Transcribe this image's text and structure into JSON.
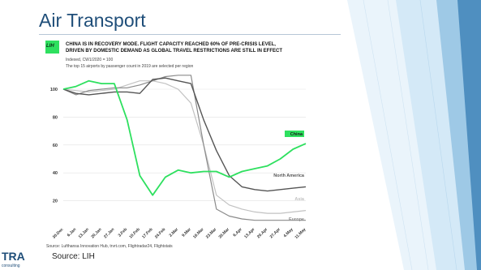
{
  "slide": {
    "title": "Air Transport",
    "source": "Source: LIH",
    "logo_text": "TRA",
    "logo_subtext": "consulting"
  },
  "chart_header": {
    "badge_text": "LIH",
    "headline_line1": "CHINA IS IN RECOVERY MODE. FLIGHT CAPACITY REACHED 60% OF PRE-CRISIS LEVEL,",
    "headline_line2": "DRIVEN BY DOMESTIC DEMAND AS GLOBAL TRAVEL RESTRICTIONS ARE STILL IN EFFECT",
    "note1": "Indexed, CW1/2020 = 100",
    "note2": "The top 15 airports by passenger count in 2019 are selected per region",
    "source": "Source: Lufthansa Innovation Hub, trvrt.com, Flightradar24, Flightstats"
  },
  "colors": {
    "title": "#1f4e79",
    "china": "#2ee05f",
    "north_america": "#555555",
    "asia": "#c2c2c2",
    "europe": "#8a8a8a",
    "grid": "#e2e2e2"
  },
  "chart_data": {
    "type": "line",
    "categories": [
      "30.Dec",
      "6.Jan",
      "13.Jan",
      "20.Jan",
      "27.Jan",
      "3.Feb",
      "10.Feb",
      "17.Feb",
      "24.Feb",
      "2.Mar",
      "9.Mar",
      "16.Mar",
      "23.Mar",
      "30.Mar",
      "6.Apr",
      "13.Apr",
      "20.Apr",
      "27.Apr",
      "4.May",
      "11.May"
    ],
    "yticks": [
      20,
      40,
      60,
      80,
      100
    ],
    "ylim": [
      0,
      120
    ],
    "grid": true,
    "legend": "inline labels at line ends",
    "series": [
      {
        "name": "China",
        "key": "china",
        "values": [
          100,
          102,
          106,
          104,
          104,
          78,
          38,
          24,
          37,
          42,
          40,
          41,
          41,
          37,
          41,
          43,
          45,
          50,
          57,
          61
        ]
      },
      {
        "name": "North America",
        "key": "north_america",
        "values": [
          100,
          97,
          96,
          97,
          98,
          98,
          97,
          107,
          108,
          106,
          104,
          78,
          56,
          38,
          30,
          28,
          27,
          28,
          29,
          30
        ]
      },
      {
        "name": "Asia",
        "key": "asia",
        "values": [
          100,
          99,
          98,
          99,
          100,
          103,
          106,
          106,
          104,
          100,
          90,
          60,
          24,
          17,
          14,
          12,
          11,
          11,
          12,
          13
        ]
      },
      {
        "name": "Europe",
        "key": "europe",
        "values": [
          100,
          96,
          99,
          100,
          101,
          101,
          103,
          106,
          109,
          110,
          110,
          60,
          14,
          9,
          7,
          6,
          6,
          6,
          6,
          6
        ]
      }
    ]
  }
}
